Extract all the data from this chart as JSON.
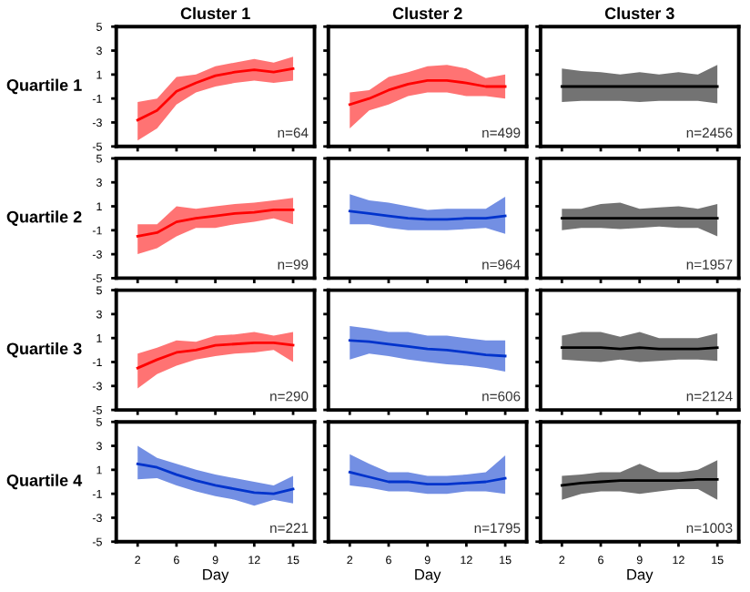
{
  "chart_data": [
    {
      "type": "line",
      "title": "Cluster 1",
      "ylabel": "Quartile 1",
      "categories": [
        "2",
        null,
        "6",
        null,
        "9",
        null,
        "12",
        null,
        "15"
      ],
      "ylim": [
        -5,
        5
      ],
      "yticks": [
        -5,
        -3,
        -1,
        1,
        3,
        5
      ],
      "tick_labels": "y",
      "annotations": [
        "n=64"
      ],
      "series": [
        {
          "color": "#ff0000",
          "values": [
            -2.8,
            -2,
            -0.4,
            0.3,
            0.9,
            1.2,
            1.4,
            1.2,
            1.5
          ],
          "lower": [
            -4.5,
            -3.5,
            -1.5,
            -0.5,
            0,
            0.3,
            0.5,
            0.3,
            0.5
          ],
          "upper": [
            -1.3,
            -1,
            0.8,
            1,
            1.7,
            2,
            2.3,
            2,
            2.5
          ]
        }
      ]
    },
    {
      "type": "line",
      "title": "Cluster 2",
      "categories": [
        "2",
        null,
        "6",
        null,
        "9",
        null,
        "12",
        null,
        "15"
      ],
      "ylim": [
        -5,
        5
      ],
      "yticks": [
        -5,
        -3,
        -1,
        1,
        3,
        5
      ],
      "tick_labels": false,
      "annotations": [
        "n=499"
      ],
      "series": [
        {
          "color": "#ff0000",
          "values": [
            -1.5,
            -1,
            -0.3,
            0.2,
            0.5,
            0.5,
            0.3,
            0,
            0
          ],
          "lower": [
            -3.5,
            -2,
            -1.5,
            -0.8,
            -0.5,
            -0.5,
            -0.8,
            -0.8,
            -1
          ],
          "upper": [
            -0.5,
            -0.3,
            0.8,
            1.2,
            1.7,
            1.8,
            1.5,
            0.7,
            1
          ]
        }
      ]
    },
    {
      "type": "line",
      "title": "Cluster 3",
      "categories": [
        "2",
        null,
        "6",
        null,
        "9",
        null,
        "12",
        null,
        "15"
      ],
      "ylim": [
        -5,
        5
      ],
      "yticks": [
        -5,
        -3,
        -1,
        1,
        3,
        5
      ],
      "tick_labels": false,
      "annotations": [
        "n=2456"
      ],
      "series": [
        {
          "color": "#000000",
          "values": [
            0,
            0,
            0,
            0,
            0,
            0,
            0,
            0,
            0
          ],
          "lower": [
            -1.3,
            -1.2,
            -1.2,
            -1.2,
            -1.3,
            -1.2,
            -1.2,
            -1.2,
            -1.4
          ],
          "upper": [
            1.5,
            1.3,
            1.2,
            1,
            1.2,
            1,
            1.2,
            1,
            1.8
          ]
        }
      ]
    },
    {
      "type": "line",
      "ylabel": "Quartile 2",
      "categories": [
        "2",
        null,
        "6",
        null,
        "9",
        null,
        "12",
        null,
        "15"
      ],
      "ylim": [
        -5,
        5
      ],
      "yticks": [
        -5,
        -3,
        -1,
        1,
        3,
        5
      ],
      "tick_labels": "y",
      "annotations": [
        "n=99"
      ],
      "series": [
        {
          "color": "#ff0000",
          "values": [
            -1.5,
            -1.2,
            -0.3,
            0,
            0.2,
            0.4,
            0.5,
            0.7,
            0.7
          ],
          "lower": [
            -3,
            -2.5,
            -1.5,
            -0.8,
            -0.8,
            -0.5,
            -0.3,
            0,
            -0.5
          ],
          "upper": [
            -0.5,
            -0.5,
            1,
            0.8,
            1,
            1.2,
            1.3,
            1.5,
            1.7
          ]
        }
      ]
    },
    {
      "type": "line",
      "categories": [
        "2",
        null,
        "6",
        null,
        "9",
        null,
        "12",
        null,
        "15"
      ],
      "ylim": [
        -5,
        5
      ],
      "yticks": [
        -5,
        -3,
        -1,
        1,
        3,
        5
      ],
      "tick_labels": false,
      "annotations": [
        "n=964"
      ],
      "series": [
        {
          "color": "#0033cc",
          "values": [
            0.6,
            0.4,
            0.2,
            0,
            -0.1,
            -0.1,
            0,
            0,
            0.2
          ],
          "lower": [
            -0.5,
            -0.5,
            -0.8,
            -1,
            -1,
            -1,
            -0.9,
            -0.8,
            -1.3
          ],
          "upper": [
            2,
            1.5,
            1.3,
            1,
            0.7,
            0.8,
            0.8,
            0.8,
            1.8
          ]
        }
      ]
    },
    {
      "type": "line",
      "categories": [
        "2",
        null,
        "6",
        null,
        "9",
        null,
        "12",
        null,
        "15"
      ],
      "ylim": [
        -5,
        5
      ],
      "yticks": [
        -5,
        -3,
        -1,
        1,
        3,
        5
      ],
      "tick_labels": false,
      "annotations": [
        "n=1957"
      ],
      "series": [
        {
          "color": "#000000",
          "values": [
            0,
            0,
            0,
            0,
            0,
            0,
            0,
            0,
            0
          ],
          "lower": [
            -1,
            -0.8,
            -0.8,
            -0.9,
            -0.8,
            -0.7,
            -0.8,
            -0.8,
            -1.5
          ],
          "upper": [
            0.8,
            0.8,
            1.2,
            1.3,
            0.8,
            0.9,
            1,
            0.8,
            1.2
          ]
        }
      ]
    },
    {
      "type": "line",
      "ylabel": "Quartile 3",
      "categories": [
        "2",
        null,
        "6",
        null,
        "9",
        null,
        "12",
        null,
        "15"
      ],
      "ylim": [
        -5,
        5
      ],
      "yticks": [
        -5,
        -3,
        -1,
        1,
        3,
        5
      ],
      "tick_labels": "y",
      "annotations": [
        "n=290"
      ],
      "series": [
        {
          "color": "#ff0000",
          "values": [
            -1.5,
            -0.8,
            -0.2,
            0,
            0.4,
            0.5,
            0.6,
            0.6,
            0.4
          ],
          "lower": [
            -3.2,
            -2,
            -1.3,
            -0.8,
            -0.5,
            -0.3,
            -0.2,
            0,
            -1
          ],
          "upper": [
            -0.3,
            0.2,
            0.8,
            0.7,
            1.2,
            1.3,
            1.5,
            1.2,
            1.5
          ]
        }
      ]
    },
    {
      "type": "line",
      "categories": [
        "2",
        null,
        "6",
        null,
        "9",
        null,
        "12",
        null,
        "15"
      ],
      "ylim": [
        -5,
        5
      ],
      "yticks": [
        -5,
        -3,
        -1,
        1,
        3,
        5
      ],
      "tick_labels": false,
      "annotations": [
        "n=606"
      ],
      "series": [
        {
          "color": "#0033cc",
          "values": [
            0.8,
            0.7,
            0.5,
            0.3,
            0.1,
            0,
            -0.2,
            -0.4,
            -0.5
          ],
          "lower": [
            -0.8,
            -0.3,
            -0.5,
            -0.8,
            -1,
            -1.2,
            -1.3,
            -1.5,
            -1.8
          ],
          "upper": [
            2,
            1.8,
            1.5,
            1.5,
            1.2,
            1.2,
            1,
            0.8,
            0.8
          ]
        }
      ]
    },
    {
      "type": "line",
      "categories": [
        "2",
        null,
        "6",
        null,
        "9",
        null,
        "12",
        null,
        "15"
      ],
      "ylim": [
        -5,
        5
      ],
      "yticks": [
        -5,
        -3,
        -1,
        1,
        3,
        5
      ],
      "tick_labels": false,
      "annotations": [
        "n=2124"
      ],
      "series": [
        {
          "color": "#000000",
          "values": [
            0.2,
            0.2,
            0.2,
            0.1,
            0.2,
            0.1,
            0.1,
            0.1,
            0.2
          ],
          "lower": [
            -0.8,
            -0.9,
            -1,
            -0.8,
            -1,
            -0.9,
            -0.8,
            -0.8,
            -0.9
          ],
          "upper": [
            1.2,
            1.5,
            1.5,
            1.1,
            1.5,
            1,
            1,
            1,
            1.4
          ]
        }
      ]
    },
    {
      "type": "line",
      "ylabel": "Quartile 4",
      "xlabel": "Day",
      "categories": [
        "2",
        null,
        "6",
        null,
        "9",
        null,
        "12",
        null,
        "15"
      ],
      "ylim": [
        -5,
        5
      ],
      "yticks": [
        -5,
        -3,
        -1,
        1,
        3,
        5
      ],
      "annotations": [
        "n=221"
      ],
      "series": [
        {
          "color": "#0033cc",
          "values": [
            1.5,
            1.2,
            0.6,
            0.1,
            -0.3,
            -0.6,
            -0.9,
            -1,
            -0.6
          ],
          "lower": [
            0.2,
            0.3,
            -0.3,
            -0.8,
            -1.2,
            -1.5,
            -2,
            -1.5,
            -1.8
          ],
          "upper": [
            3,
            2,
            1.5,
            1,
            0.6,
            0.3,
            0,
            -0.3,
            0.5
          ]
        }
      ]
    },
    {
      "type": "line",
      "xlabel": "Day",
      "categories": [
        "2",
        null,
        "6",
        null,
        "9",
        null,
        "12",
        null,
        "15"
      ],
      "ylim": [
        -5,
        5
      ],
      "yticks": [
        -5,
        -3,
        -1,
        1,
        3,
        5
      ],
      "tick_labels": "x",
      "annotations": [
        "n=1795"
      ],
      "series": [
        {
          "color": "#0033cc",
          "values": [
            0.8,
            0.4,
            0,
            0,
            -0.2,
            -0.2,
            -0.1,
            0,
            0.3
          ],
          "lower": [
            -0.3,
            -0.5,
            -0.8,
            -0.8,
            -1,
            -1,
            -0.8,
            -0.8,
            -1
          ],
          "upper": [
            2.3,
            1.5,
            0.8,
            0.8,
            0.5,
            0.5,
            0.6,
            0.8,
            2.2
          ]
        }
      ]
    },
    {
      "type": "line",
      "xlabel": "Day",
      "categories": [
        "2",
        null,
        "6",
        null,
        "9",
        null,
        "12",
        null,
        "15"
      ],
      "ylim": [
        -5,
        5
      ],
      "yticks": [
        -5,
        -3,
        -1,
        1,
        3,
        5
      ],
      "tick_labels": "x",
      "annotations": [
        "n=1003"
      ],
      "series": [
        {
          "color": "#000000",
          "values": [
            -0.3,
            -0.1,
            0,
            0.1,
            0.1,
            0.1,
            0.1,
            0.2,
            0.2
          ],
          "lower": [
            -1.5,
            -1,
            -0.8,
            -0.8,
            -1,
            -0.8,
            -0.6,
            -0.6,
            -1.5
          ],
          "upper": [
            0.5,
            0.6,
            0.8,
            0.8,
            1.5,
            0.8,
            0.8,
            1,
            1.8
          ]
        }
      ]
    }
  ]
}
